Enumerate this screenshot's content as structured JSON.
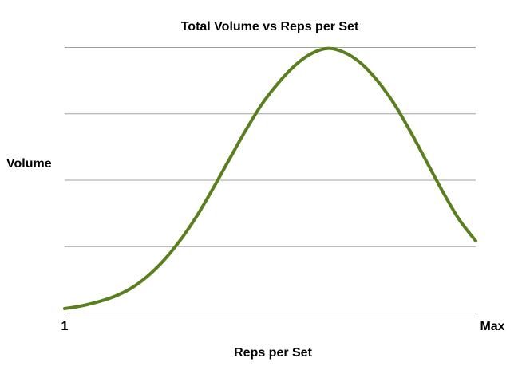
{
  "chart_data": {
    "type": "line",
    "title": "Total Volume vs Reps per Set",
    "xlabel": "Reps per Set",
    "ylabel": "Volume",
    "x_tick_labels": [
      "1",
      "Max"
    ],
    "y_tick_labels": [],
    "xlim": [
      0,
      1
    ],
    "ylim": [
      0,
      100
    ],
    "y_gridlines": [
      0,
      25,
      50,
      75,
      100
    ],
    "grid": true,
    "legend": "none",
    "colors": {
      "line": "#5a7f1e",
      "grid": "#a0a0a0"
    },
    "series": [
      {
        "x": [
          0,
          0.04,
          0.08,
          0.12,
          0.16,
          0.2,
          0.24,
          0.28,
          0.32,
          0.36,
          0.4,
          0.44,
          0.48,
          0.52,
          0.56,
          0.6,
          0.64,
          0.68,
          0.72,
          0.76,
          0.8,
          0.84,
          0.88,
          0.92,
          0.96,
          1.0
        ],
        "values": [
          1.5,
          2.5,
          4,
          6,
          9,
          13.5,
          19.5,
          27,
          36,
          46.5,
          57.5,
          68.5,
          78.5,
          86.5,
          93,
          97.5,
          99.5,
          98,
          94,
          87.5,
          79,
          68.5,
          57,
          45.5,
          35,
          27
        ]
      }
    ]
  }
}
